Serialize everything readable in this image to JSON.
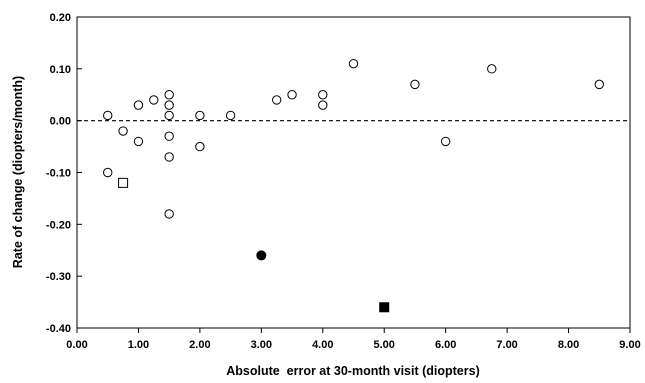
{
  "chart_data": {
    "type": "scatter",
    "title": "",
    "xlabel": "Absolute  error at 30-month visit (diopters)",
    "ylabel": "Rate of change (diopters/month)",
    "xlim": [
      0,
      9
    ],
    "ylim": [
      -0.4,
      0.2
    ],
    "x_ticks": [
      "0.00",
      "1.00",
      "2.00",
      "3.00",
      "4.00",
      "5.00",
      "6.00",
      "7.00",
      "8.00",
      "9.00"
    ],
    "y_ticks": [
      "0.20",
      "0.10",
      "0.00",
      "-0.10",
      "-0.20",
      "-0.30",
      "-0.40"
    ],
    "grid": false,
    "reference_line": {
      "y": 0.0,
      "style": "dashed"
    },
    "series": [
      {
        "marker": "open-circle",
        "points": [
          [
            0.5,
            0.01
          ],
          [
            0.5,
            -0.1
          ],
          [
            0.75,
            -0.02
          ],
          [
            1.0,
            0.03
          ],
          [
            1.0,
            -0.04
          ],
          [
            1.25,
            0.04
          ],
          [
            1.5,
            0.05
          ],
          [
            1.5,
            0.03
          ],
          [
            1.5,
            0.01
          ],
          [
            1.5,
            -0.03
          ],
          [
            1.5,
            -0.07
          ],
          [
            1.5,
            -0.18
          ],
          [
            2.0,
            0.01
          ],
          [
            2.0,
            -0.05
          ],
          [
            2.5,
            0.01
          ],
          [
            3.25,
            0.04
          ],
          [
            3.5,
            0.05
          ],
          [
            4.0,
            0.05
          ],
          [
            4.0,
            0.03
          ],
          [
            4.5,
            0.11
          ],
          [
            5.5,
            0.07
          ],
          [
            6.0,
            -0.04
          ],
          [
            6.75,
            0.1
          ],
          [
            8.5,
            0.07
          ]
        ]
      },
      {
        "marker": "open-square",
        "points": [
          [
            0.75,
            -0.12
          ]
        ]
      },
      {
        "marker": "filled-circle",
        "points": [
          [
            3.0,
            -0.26
          ]
        ]
      },
      {
        "marker": "filled-square",
        "points": [
          [
            5.0,
            -0.36
          ]
        ]
      }
    ]
  }
}
